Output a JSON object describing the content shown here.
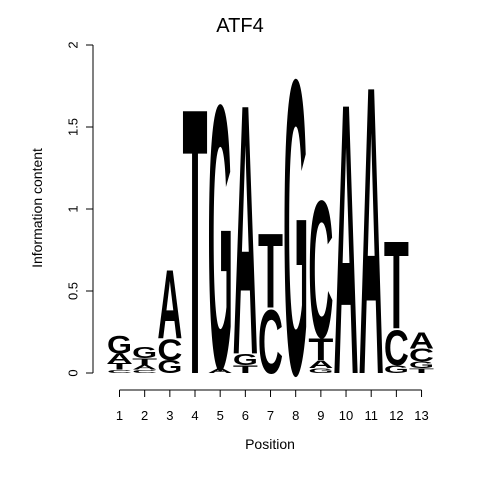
{
  "chart_data": {
    "type": "sequence-logo",
    "title": "ATF4",
    "xlabel": "Position",
    "ylabel": "Information content",
    "ylim": [
      0,
      2
    ],
    "yticks": [
      "0",
      "0.5",
      "1",
      "1.5",
      "2"
    ],
    "positions": [
      "1",
      "2",
      "3",
      "4",
      "5",
      "6",
      "7",
      "8",
      "9",
      "10",
      "11",
      "12",
      "13"
    ],
    "colors": {
      "A": "#00ee00",
      "C": "#0000ee",
      "G": "#ffa500",
      "T": "#ff0000"
    },
    "stacks": [
      [
        {
          "letter": "C",
          "value": 0.02
        },
        {
          "letter": "T",
          "value": 0.04
        },
        {
          "letter": "A",
          "value": 0.06
        },
        {
          "letter": "G",
          "value": 0.11
        }
      ],
      [
        {
          "letter": "C",
          "value": 0.02
        },
        {
          "letter": "A",
          "value": 0.03
        },
        {
          "letter": "T",
          "value": 0.04
        },
        {
          "letter": "G",
          "value": 0.07
        }
      ],
      [
        {
          "letter": "G",
          "value": 0.08
        },
        {
          "letter": "C",
          "value": 0.13
        },
        {
          "letter": "A",
          "value": 0.43
        }
      ],
      [
        {
          "letter": "T",
          "value": 1.67
        }
      ],
      [
        {
          "letter": "A",
          "value": 0.03
        },
        {
          "letter": "G",
          "value": 1.66
        }
      ],
      [
        {
          "letter": "T",
          "value": 0.05
        },
        {
          "letter": "G",
          "value": 0.07
        },
        {
          "letter": "A",
          "value": 1.57
        }
      ],
      [
        {
          "letter": "C",
          "value": 0.4
        },
        {
          "letter": "T",
          "value": 0.47
        }
      ],
      [
        {
          "letter": "G",
          "value": 1.85
        }
      ],
      [
        {
          "letter": "G",
          "value": 0.03
        },
        {
          "letter": "A",
          "value": 0.05
        },
        {
          "letter": "T",
          "value": 0.14
        },
        {
          "letter": "C",
          "value": 0.86
        }
      ],
      [
        {
          "letter": "A",
          "value": 1.7
        }
      ],
      [
        {
          "letter": "A",
          "value": 1.81
        }
      ],
      [
        {
          "letter": "G",
          "value": 0.05
        },
        {
          "letter": "C",
          "value": 0.22
        },
        {
          "letter": "T",
          "value": 0.55
        }
      ],
      [
        {
          "letter": "T",
          "value": 0.03
        },
        {
          "letter": "G",
          "value": 0.04
        },
        {
          "letter": "C",
          "value": 0.08
        },
        {
          "letter": "A",
          "value": 0.1
        }
      ]
    ]
  }
}
